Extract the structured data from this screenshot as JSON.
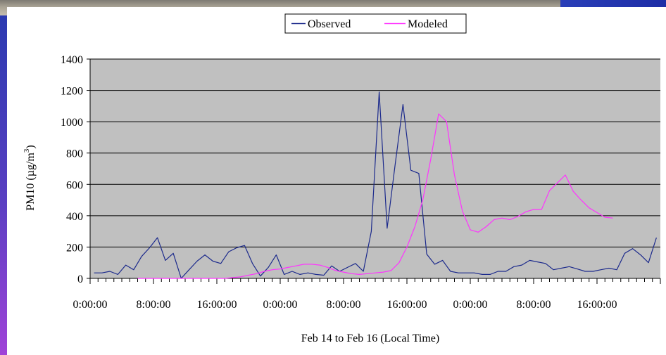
{
  "chart_data": {
    "type": "line",
    "ylabel_main": "PM10 (",
    "ylabel_unit": "µg/m",
    "ylabel_sup": "3",
    "ylabel_close": ")",
    "xlabel": "Feb 14 to Feb 16 (Local Time)",
    "ylim": [
      0,
      1400
    ],
    "yticks": [
      0,
      200,
      400,
      600,
      800,
      1000,
      1200,
      1400
    ],
    "xlim_hours": [
      0,
      72
    ],
    "xticks": [
      {
        "hour": 0,
        "label": "0:00:00"
      },
      {
        "hour": 8,
        "label": "8:00:00"
      },
      {
        "hour": 16,
        "label": "16:00:00"
      },
      {
        "hour": 24,
        "label": "0:00:00"
      },
      {
        "hour": 32,
        "label": "8:00:00"
      },
      {
        "hour": 40,
        "label": "16:00:00"
      },
      {
        "hour": 48,
        "label": "0:00:00"
      },
      {
        "hour": 56,
        "label": "8:00:00"
      },
      {
        "hour": 64,
        "label": "16:00:00"
      }
    ],
    "grid": true,
    "legend_position": "top-center",
    "plot_background": "#c0c0c0",
    "series": [
      {
        "name": "Observed",
        "color": "#1c2a8c",
        "x": [
          0.5,
          1.5,
          2.5,
          3.5,
          4.5,
          5.5,
          6.5,
          7.5,
          8.5,
          9.5,
          10.5,
          11.5,
          12.5,
          13.5,
          14.5,
          15.5,
          16.5,
          17.5,
          18.5,
          19.5,
          20.5,
          21.5,
          22.5,
          23.5,
          24.5,
          25.5,
          26.5,
          27.5,
          28.5,
          29.5,
          30.5,
          31.5,
          32.5,
          33.5,
          34.5,
          35.5,
          36.5,
          37.5,
          38.5,
          39.5,
          40.5,
          41.5,
          42.5,
          43.5,
          44.5,
          45.5,
          46.5,
          47.5,
          48.5,
          49.5,
          50.5,
          51.5,
          52.5,
          53.5,
          54.5,
          55.5,
          56.5,
          57.5,
          58.5,
          59.5,
          60.5,
          61.5,
          62.5,
          63.5,
          64.5,
          65.5,
          66.5,
          67.5,
          68.5,
          69.5,
          70.5,
          71.5
        ],
        "values": [
          35,
          35,
          45,
          25,
          85,
          55,
          140,
          195,
          260,
          115,
          160,
          0,
          55,
          110,
          150,
          110,
          95,
          170,
          195,
          210,
          95,
          15,
          70,
          150,
          25,
          45,
          25,
          35,
          25,
          20,
          80,
          45,
          70,
          95,
          45,
          300,
          1190,
          320,
          720,
          1110,
          690,
          670,
          155,
          90,
          115,
          45,
          35,
          35,
          35,
          25,
          25,
          45,
          45,
          75,
          85,
          115,
          105,
          95,
          55,
          65,
          75,
          60,
          45,
          45,
          55,
          65,
          55,
          160,
          190,
          150,
          100,
          260
        ]
      },
      {
        "name": "Modeled",
        "color": "#ff33ff",
        "x": [
          6,
          7,
          8,
          9,
          10,
          11,
          12,
          13,
          14,
          15,
          16,
          17,
          18,
          19,
          20,
          21,
          22,
          23,
          24,
          25,
          26,
          27,
          28,
          29,
          30,
          31,
          32,
          33,
          34,
          35,
          36,
          37,
          38,
          39,
          40,
          41,
          42,
          43,
          44,
          45,
          46,
          47,
          48,
          49,
          50,
          51,
          52,
          53,
          54,
          55,
          56,
          57,
          58,
          59,
          60,
          61,
          62,
          63,
          64,
          65,
          66
        ],
        "values": [
          0,
          0,
          0,
          0,
          0,
          0,
          0,
          0,
          0,
          0,
          0,
          0,
          5,
          10,
          20,
          30,
          45,
          55,
          60,
          70,
          80,
          90,
          90,
          85,
          70,
          50,
          40,
          30,
          25,
          30,
          35,
          40,
          50,
          100,
          200,
          330,
          500,
          760,
          1050,
          1000,
          660,
          430,
          310,
          295,
          330,
          375,
          385,
          375,
          395,
          425,
          440,
          440,
          560,
          610,
          660,
          555,
          500,
          450,
          420,
          390,
          385
        ]
      }
    ]
  }
}
